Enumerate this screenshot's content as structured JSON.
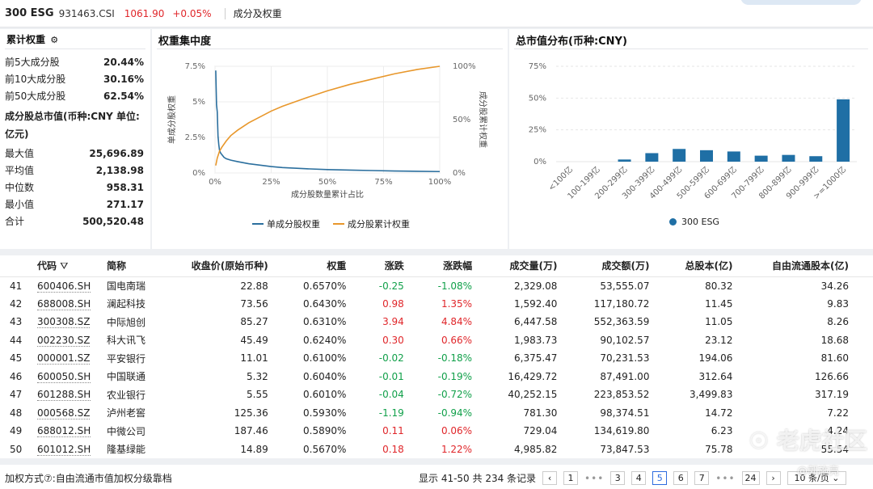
{
  "header": {
    "name": "300 ESG",
    "code": "931463.CSI",
    "price": "1061.90",
    "change": "+0.05%",
    "tab": "成分及权重"
  },
  "weights": {
    "title": "累计权重",
    "rows": [
      {
        "label": "前5大成分股",
        "value": "20.44%"
      },
      {
        "label": "前10大成分股",
        "value": "30.16%"
      },
      {
        "label": "前50大成分股",
        "value": "62.54%"
      }
    ],
    "mcap_title": "成分股总市值(币种:CNY 单位:亿元)",
    "stats": [
      {
        "label": "最大值",
        "value": "25,696.89"
      },
      {
        "label": "平均值",
        "value": "2,138.98"
      },
      {
        "label": "中位数",
        "value": "958.31"
      },
      {
        "label": "最小值",
        "value": "271.17"
      },
      {
        "label": "合计",
        "value": "500,520.48"
      }
    ]
  },
  "chart_data": [
    {
      "type": "line",
      "title": "权重集中度",
      "xlabel": "成分股数量累计占比",
      "ylabel": "单成分股权重",
      "y2label": "成分股累计权重",
      "x_ticks": [
        "0%",
        "25%",
        "50%",
        "75%",
        "100%"
      ],
      "y_ticks": [
        "0%",
        "2.5%",
        "5%",
        "7.5%"
      ],
      "y2_ticks": [
        "0%",
        "50%",
        "100%"
      ],
      "xlim": [
        0,
        100
      ],
      "ylim": [
        0,
        7.5
      ],
      "y2lim": [
        0,
        100
      ],
      "series": [
        {
          "name": "单成分股权重",
          "color": "#2b6f9e",
          "x": [
            0.33,
            0.67,
            1,
            1.33,
            1.67,
            2,
            2.5,
            3,
            4,
            5,
            7,
            10,
            15,
            20,
            25,
            30,
            40,
            50,
            60,
            70,
            80,
            90,
            100
          ],
          "y": [
            7.2,
            4.8,
            4.3,
            2.6,
            2.0,
            1.6,
            1.4,
            1.3,
            1.1,
            1.0,
            0.9,
            0.8,
            0.65,
            0.55,
            0.45,
            0.38,
            0.3,
            0.24,
            0.2,
            0.17,
            0.14,
            0.12,
            0.1
          ]
        },
        {
          "name": "成分股累计权重",
          "color": "#e8972b",
          "x": [
            0.33,
            1,
            2,
            3,
            5,
            7,
            10,
            15,
            20,
            25,
            30,
            40,
            50,
            60,
            70,
            80,
            90,
            100
          ],
          "y": [
            7,
            14,
            20.4,
            24,
            30,
            35,
            40,
            47,
            52.5,
            58,
            62.5,
            70,
            77,
            83,
            88,
            93,
            97,
            100
          ]
        }
      ]
    },
    {
      "type": "bar",
      "title": "总市值分布(币种:CNY)",
      "categories": [
        "<100亿",
        "100-199亿",
        "200-299亿",
        "300-399亿",
        "400-499亿",
        "500-599亿",
        "600-699亿",
        "700-799亿",
        "800-899亿",
        "900-999亿",
        ">=1000亿"
      ],
      "series": [
        {
          "name": "300 ESG",
          "color": "#1f6fa5",
          "values": [
            0,
            0,
            1.7,
            6.7,
            10,
            9,
            8,
            4.7,
            5.3,
            4.3,
            49
          ]
        }
      ],
      "y_ticks": [
        "0%",
        "25%",
        "50%",
        "75%"
      ],
      "ylim": [
        0,
        75
      ]
    }
  ],
  "table": {
    "headers": [
      "代码",
      "简称",
      "收盘价(原始币种)",
      "权重",
      "涨跌",
      "涨跌幅",
      "成交量(万)",
      "成交额(万)",
      "总股本(亿)",
      "自由流通股本(亿)"
    ],
    "rows": [
      {
        "idx": "41",
        "code": "600406.SH",
        "name": "国电南瑞",
        "close": "22.88",
        "weight": "0.6570%",
        "chg": "-0.25",
        "pct": "-1.08%",
        "vol": "2,329.08",
        "amt": "53,555.07",
        "total": "80.32",
        "free": "34.26",
        "dir": "dn"
      },
      {
        "idx": "42",
        "code": "688008.SH",
        "name": "澜起科技",
        "close": "73.56",
        "weight": "0.6430%",
        "chg": "0.98",
        "pct": "1.35%",
        "vol": "1,592.40",
        "amt": "117,180.72",
        "total": "11.45",
        "free": "9.83",
        "dir": "up"
      },
      {
        "idx": "43",
        "code": "300308.SZ",
        "name": "中际旭创",
        "close": "85.27",
        "weight": "0.6310%",
        "chg": "3.94",
        "pct": "4.84%",
        "vol": "6,447.58",
        "amt": "552,363.59",
        "total": "11.05",
        "free": "8.26",
        "dir": "up"
      },
      {
        "idx": "44",
        "code": "002230.SZ",
        "name": "科大讯飞",
        "close": "45.49",
        "weight": "0.6240%",
        "chg": "0.30",
        "pct": "0.66%",
        "vol": "1,983.73",
        "amt": "90,102.57",
        "total": "23.12",
        "free": "18.68",
        "dir": "up"
      },
      {
        "idx": "45",
        "code": "000001.SZ",
        "name": "平安银行",
        "close": "11.01",
        "weight": "0.6100%",
        "chg": "-0.02",
        "pct": "-0.18%",
        "vol": "6,375.47",
        "amt": "70,231.53",
        "total": "194.06",
        "free": "81.60",
        "dir": "dn"
      },
      {
        "idx": "46",
        "code": "600050.SH",
        "name": "中国联通",
        "close": "5.32",
        "weight": "0.6040%",
        "chg": "-0.01",
        "pct": "-0.19%",
        "vol": "16,429.72",
        "amt": "87,491.00",
        "total": "312.64",
        "free": "126.66",
        "dir": "dn"
      },
      {
        "idx": "47",
        "code": "601288.SH",
        "name": "农业银行",
        "close": "5.55",
        "weight": "0.6010%",
        "chg": "-0.04",
        "pct": "-0.72%",
        "vol": "40,252.15",
        "amt": "223,853.52",
        "total": "3,499.83",
        "free": "317.19",
        "dir": "dn"
      },
      {
        "idx": "48",
        "code": "000568.SZ",
        "name": "泸州老窖",
        "close": "125.36",
        "weight": "0.5930%",
        "chg": "-1.19",
        "pct": "-0.94%",
        "vol": "781.30",
        "amt": "98,374.51",
        "total": "14.72",
        "free": "7.22",
        "dir": "dn"
      },
      {
        "idx": "49",
        "code": "688012.SH",
        "name": "中微公司",
        "close": "187.46",
        "weight": "0.5890%",
        "chg": "0.11",
        "pct": "0.06%",
        "vol": "729.04",
        "amt": "134,619.80",
        "total": "6.23",
        "free": "4.24",
        "dir": "up"
      },
      {
        "idx": "50",
        "code": "601012.SH",
        "name": "隆基绿能",
        "close": "14.89",
        "weight": "0.5670%",
        "chg": "0.18",
        "pct": "1.22%",
        "vol": "4,985.82",
        "amt": "73,847.53",
        "total": "75.78",
        "free": "55.54",
        "dir": "up"
      }
    ]
  },
  "footer": {
    "method": "加权方式⑦:自由流通市值加权分级靠档",
    "summary": "显示 41-50 共 234 条记录",
    "pages": [
      "1",
      "3",
      "4",
      "5",
      "6",
      "7",
      "24"
    ],
    "current": "5",
    "page_size": "10 条/页"
  },
  "watermark": {
    "main": "老虎社区",
    "sub": "@郭施亮"
  },
  "colors": {
    "up": "#e0262a",
    "down": "#11a04a",
    "line1": "#2b6f9e",
    "line2": "#e8972b",
    "bar": "#1f6fa5"
  }
}
